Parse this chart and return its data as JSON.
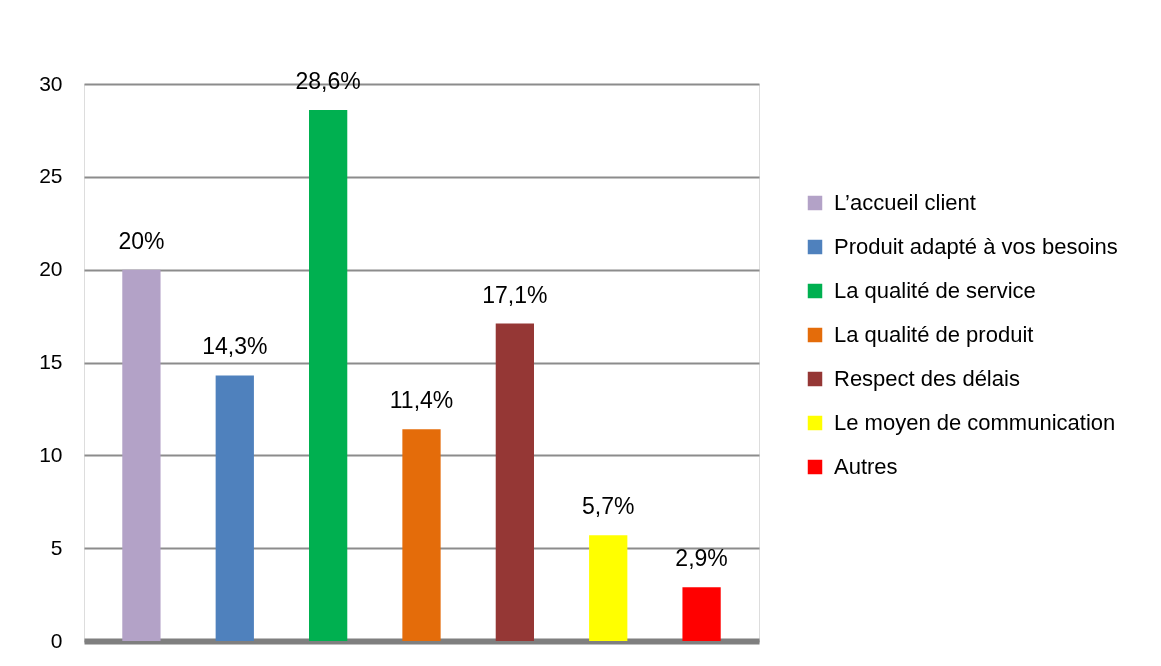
{
  "chart_data": {
    "type": "bar",
    "categories": [
      null
    ],
    "series": [
      {
        "name": "L’accueil client",
        "color": "#b3a2c7",
        "values": [
          20
        ],
        "value_labels": [
          "20%"
        ]
      },
      {
        "name": "Produit adapté à vos besoins",
        "color": "#4f81bd",
        "values": [
          14.3
        ],
        "value_labels": [
          "14,3%"
        ]
      },
      {
        "name": "La qualité de service",
        "color": "#00b050",
        "values": [
          28.6
        ],
        "value_labels": [
          "28,6%"
        ]
      },
      {
        "name": "La qualité de produit",
        "color": "#e46c0a",
        "values": [
          11.4
        ],
        "value_labels": [
          "11,4%"
        ]
      },
      {
        "name": "Respect des délais",
        "color": "#953735",
        "values": [
          17.1
        ],
        "value_labels": [
          "17,1%"
        ]
      },
      {
        "name": "Le moyen de communication",
        "color": "#ffff00",
        "values": [
          5.7
        ],
        "value_labels": [
          "5,7%"
        ]
      },
      {
        "name": "Autres",
        "color": "#ff0000",
        "values": [
          2.9
        ],
        "value_labels": [
          "2,9%"
        ]
      }
    ],
    "ylim": [
      0,
      30
    ],
    "yticks": [
      0,
      5,
      10,
      15,
      20,
      25,
      30
    ],
    "grid": "y",
    "legend": "right",
    "tick_labels": "y"
  }
}
